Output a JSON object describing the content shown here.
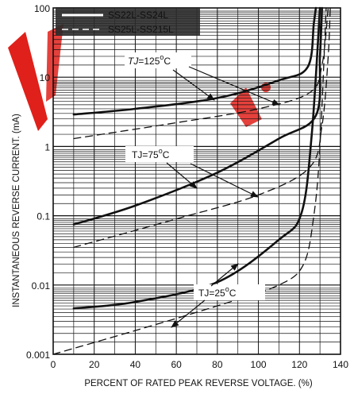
{
  "chart_data": {
    "type": "line",
    "xlabel": "PERCENT OF RATED PEAK REVERSE VOLTAGE. (%)",
    "ylabel": "INSTANTANEOUS REVERSE CURRENT. (mA)",
    "xlim": [
      0,
      140
    ],
    "ylim": [
      0.001,
      100
    ],
    "yscale": "log",
    "grid": true,
    "legend_position": "top-left",
    "x_ticks": [
      0,
      20,
      40,
      60,
      80,
      100,
      120,
      140
    ],
    "x_tick_labels": [
      "0",
      "20",
      "40",
      "60",
      "80",
      "100",
      "120",
      "140"
    ],
    "y_ticks": [
      0.001,
      0.01,
      0.1,
      1,
      10,
      100
    ],
    "y_tick_labels": [
      "0.001",
      "0.01",
      "0.1",
      "1",
      "10",
      "100"
    ],
    "series": [
      {
        "name": "SS22L-SS24L",
        "style": "solid",
        "curves": [
          {
            "condition": "TJ=125°C",
            "points": [
              [
                10,
                2.9
              ],
              [
                40,
                3.5
              ],
              [
                80,
                5.0
              ],
              [
                110,
                9.0
              ],
              [
                124,
                14
              ],
              [
                127,
                60
              ],
              [
                128,
                100
              ]
            ]
          },
          {
            "condition": "TJ=75°C",
            "points": [
              [
                10,
                0.075
              ],
              [
                40,
                0.14
              ],
              [
                80,
                0.42
              ],
              [
                110,
                1.3
              ],
              [
                128,
                2.8
              ],
              [
                130,
                20
              ],
              [
                131,
                100
              ]
            ]
          },
          {
            "condition": "TJ=25°C",
            "points": [
              [
                10,
                0.0046
              ],
              [
                40,
                0.0057
              ],
              [
                80,
                0.011
              ],
              [
                110,
                0.045
              ],
              [
                121,
                0.11
              ],
              [
                126,
                1.5
              ],
              [
                130,
                100
              ]
            ]
          }
        ]
      },
      {
        "name": "SS25L-SS215L",
        "style": "dashed",
        "curves": [
          {
            "condition": "TJ=125°C",
            "points": [
              [
                10,
                1.3
              ],
              [
                60,
                2.2
              ],
              [
                100,
                3.5
              ],
              [
                125,
                6.0
              ],
              [
                131,
                15
              ],
              [
                134,
                100
              ]
            ]
          },
          {
            "condition": "TJ=75°C",
            "points": [
              [
                10,
                0.035
              ],
              [
                60,
                0.09
              ],
              [
                100,
                0.2
              ],
              [
                125,
                0.5
              ],
              [
                131,
                2.0
              ],
              [
                134,
                20
              ],
              [
                135,
                100
              ]
            ]
          },
          {
            "condition": "TJ=25°C",
            "points": [
              [
                0,
                0.001
              ],
              [
                40,
                0.0022
              ],
              [
                80,
                0.005
              ],
              [
                110,
                0.01
              ],
              [
                122,
                0.02
              ],
              [
                127,
                0.1
              ],
              [
                130,
                1.0
              ],
              [
                133,
                100
              ]
            ]
          }
        ]
      }
    ],
    "annotations": [
      {
        "text": "TJ=125°C",
        "tj": "TJ",
        "num": "=125",
        "deg": "o",
        "unit": "C"
      },
      {
        "text": "TJ=75°C",
        "tj": "TJ",
        "num": "=75",
        "deg": "o",
        "unit": "C"
      },
      {
        "text": "TJ=25°C",
        "tj": "TJ",
        "num": "=25",
        "deg": "o",
        "unit": "C"
      }
    ]
  }
}
